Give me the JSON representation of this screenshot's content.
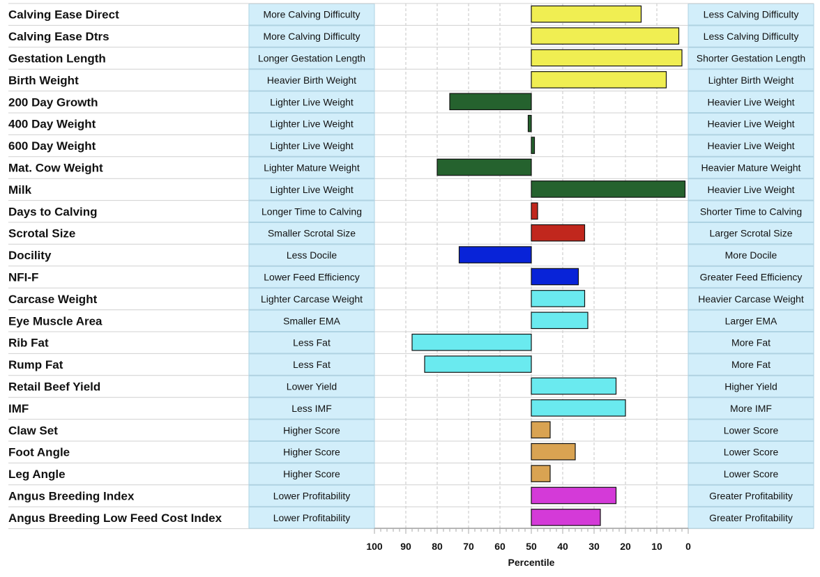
{
  "chart_data": {
    "type": "bar",
    "orientation": "horizontal",
    "xlabel": "Percentile",
    "xlim": [
      100,
      0
    ],
    "x_reversed": true,
    "baseline": 50,
    "x_ticks": [
      100,
      90,
      80,
      70,
      60,
      50,
      40,
      30,
      20,
      10,
      0
    ],
    "grid": "vertical dashed",
    "colors": {
      "yellow": "#f0ee52",
      "dark_green": "#25622e",
      "red": "#c1271d",
      "blue": "#0823d8",
      "cyan": "#6aeaef",
      "tan": "#d9a352",
      "magenta": "#d43ad8",
      "label_box": "#d2eefa",
      "label_border": "#aed3e3"
    },
    "rows": [
      {
        "trait": "Calving Ease Direct",
        "left_label": "More Calving Difficulty",
        "right_label": "Less Calving Difficulty",
        "value": 15,
        "color": "yellow"
      },
      {
        "trait": "Calving Ease Dtrs",
        "left_label": "More Calving Difficulty",
        "right_label": "Less Calving Difficulty",
        "value": 3,
        "color": "yellow"
      },
      {
        "trait": "Gestation Length",
        "left_label": "Longer Gestation Length",
        "right_label": "Shorter Gestation Length",
        "value": 2,
        "color": "yellow"
      },
      {
        "trait": "Birth Weight",
        "left_label": "Heavier Birth Weight",
        "right_label": "Lighter Birth Weight",
        "value": 7,
        "color": "yellow"
      },
      {
        "trait": "200 Day Growth",
        "left_label": "Lighter Live Weight",
        "right_label": "Heavier Live Weight",
        "value": 76,
        "color": "dark_green"
      },
      {
        "trait": "400 Day Weight",
        "left_label": "Lighter Live Weight",
        "right_label": "Heavier Live Weight",
        "value": 51,
        "color": "dark_green"
      },
      {
        "trait": "600 Day Weight",
        "left_label": "Lighter Live Weight",
        "right_label": "Heavier Live Weight",
        "value": 49,
        "color": "dark_green"
      },
      {
        "trait": "Mat. Cow Weight",
        "left_label": "Lighter Mature Weight",
        "right_label": "Heavier Mature Weight",
        "value": 80,
        "color": "dark_green"
      },
      {
        "trait": "Milk",
        "left_label": "Lighter Live Weight",
        "right_label": "Heavier Live Weight",
        "value": 1,
        "color": "dark_green"
      },
      {
        "trait": "Days to Calving",
        "left_label": "Longer Time to Calving",
        "right_label": "Shorter Time to Calving",
        "value": 48,
        "color": "red"
      },
      {
        "trait": "Scrotal Size",
        "left_label": "Smaller Scrotal Size",
        "right_label": "Larger Scrotal Size",
        "value": 33,
        "color": "red"
      },
      {
        "trait": "Docility",
        "left_label": "Less Docile",
        "right_label": "More Docile",
        "value": 73,
        "color": "blue"
      },
      {
        "trait": "NFI-F",
        "left_label": "Lower Feed Efficiency",
        "right_label": "Greater Feed Efficiency",
        "value": 35,
        "color": "blue"
      },
      {
        "trait": "Carcase Weight",
        "left_label": "Lighter Carcase Weight",
        "right_label": "Heavier Carcase Weight",
        "value": 33,
        "color": "cyan"
      },
      {
        "trait": "Eye Muscle Area",
        "left_label": "Smaller EMA",
        "right_label": "Larger EMA",
        "value": 32,
        "color": "cyan"
      },
      {
        "trait": "Rib Fat",
        "left_label": "Less Fat",
        "right_label": "More Fat",
        "value": 88,
        "color": "cyan"
      },
      {
        "trait": "Rump Fat",
        "left_label": "Less Fat",
        "right_label": "More Fat",
        "value": 84,
        "color": "cyan"
      },
      {
        "trait": "Retail Beef Yield",
        "left_label": "Lower Yield",
        "right_label": "Higher Yield",
        "value": 23,
        "color": "cyan"
      },
      {
        "trait": "IMF",
        "left_label": "Less IMF",
        "right_label": "More IMF",
        "value": 20,
        "color": "cyan"
      },
      {
        "trait": "Claw Set",
        "left_label": "Higher Score",
        "right_label": "Lower Score",
        "value": 44,
        "color": "tan"
      },
      {
        "trait": "Foot Angle",
        "left_label": "Higher Score",
        "right_label": "Lower Score",
        "value": 36,
        "color": "tan"
      },
      {
        "trait": "Leg Angle",
        "left_label": "Higher Score",
        "right_label": "Lower Score",
        "value": 44,
        "color": "tan"
      },
      {
        "trait": "Angus Breeding Index",
        "left_label": "Lower Profitability",
        "right_label": "Greater Profitability",
        "value": 23,
        "color": "magenta"
      },
      {
        "trait": "Angus Breeding Low Feed Cost Index",
        "left_label": "Lower Profitability",
        "right_label": "Greater Profitability",
        "value": 28,
        "color": "magenta"
      }
    ]
  }
}
